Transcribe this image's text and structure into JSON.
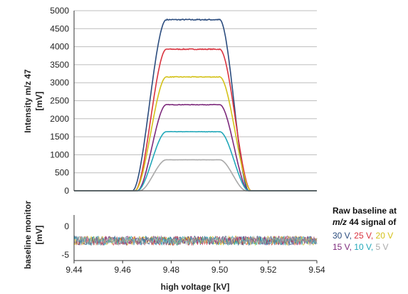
{
  "chart_data": [
    {
      "type": "line",
      "ylabel_line1": "Intensity m/z 47",
      "ylabel_line2": "[mV]",
      "xlim": [
        9.44,
        9.54
      ],
      "ylim": [
        0,
        5000
      ],
      "yticks": [
        "0",
        "500",
        "1000",
        "1500",
        "2000",
        "2500",
        "3000",
        "3500",
        "4000",
        "4500",
        "5000"
      ],
      "grid": "horizontal",
      "series": [
        {
          "name": "30 V",
          "color": "#2b4c7e",
          "plateau": 4750,
          "x_rise": [
            9.464,
            9.478
          ],
          "x_fall": [
            9.5,
            9.512
          ]
        },
        {
          "name": "25 V",
          "color": "#d9333f",
          "plateau": 3930,
          "x_rise": [
            9.465,
            9.478
          ],
          "x_fall": [
            9.5,
            9.513
          ]
        },
        {
          "name": "20 V",
          "color": "#d4c21a",
          "plateau": 3160,
          "x_rise": [
            9.465,
            9.478
          ],
          "x_fall": [
            9.5,
            9.513
          ]
        },
        {
          "name": "15 V",
          "color": "#7d2a7c",
          "plateau": 2390,
          "x_rise": [
            9.466,
            9.478
          ],
          "x_fall": [
            9.5,
            9.512
          ]
        },
        {
          "name": "10 V",
          "color": "#22a8b9",
          "plateau": 1640,
          "x_rise": [
            9.466,
            9.478
          ],
          "x_fall": [
            9.5,
            9.512
          ]
        },
        {
          "name": "5 V",
          "color": "#a9a9a9",
          "plateau": 860,
          "x_rise": [
            9.467,
            9.478
          ],
          "x_fall": [
            9.5,
            9.511
          ]
        }
      ]
    },
    {
      "type": "line",
      "ylabel_line1": "baseline monitor",
      "ylabel_line2": "[mV]",
      "xlabel": "high voltage [kV]",
      "xlim": [
        9.44,
        9.54
      ],
      "ylim": [
        -6,
        2
      ],
      "yticks": [
        "0",
        "-5"
      ],
      "xticks": [
        "9.44",
        "9.46",
        "9.48",
        "9.50",
        "9.52",
        "9.54"
      ],
      "baseline_level": -2.5,
      "noise_amplitude": 0.8
    }
  ],
  "legend": {
    "title_line1": "Raw baseline at",
    "title_mz": "m/z",
    "title_line2_rest": " 44 signal of",
    "rows": [
      [
        {
          "label": "30 V",
          "color": "#2b4c7e"
        },
        {
          "label": "25 V",
          "color": "#d9333f"
        },
        {
          "label": "20 V",
          "color": "#d4c21a"
        }
      ],
      [
        {
          "label": "15 V",
          "color": "#7d2a7c"
        },
        {
          "label": "10 V",
          "color": "#22a8b9"
        },
        {
          "label": "5 V",
          "color": "#a9a9a9"
        }
      ]
    ]
  }
}
